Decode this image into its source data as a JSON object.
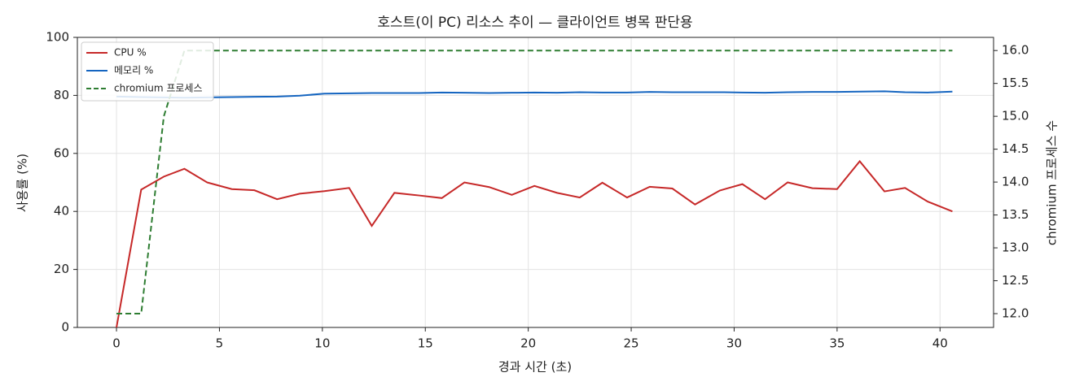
{
  "chart_data": {
    "type": "line",
    "title": "호스트(이 PC) 리소스 추이 — 클라이언트 병목 판단용",
    "x_label": "경과 시간 (초)",
    "y_label": "사용률 (%)",
    "y2_label": "chromium 프로세스 수",
    "x": [
      0,
      1.2,
      2.3,
      3.3,
      4.4,
      5.6,
      6.7,
      7.8,
      8.9,
      10.1,
      11.3,
      12.4,
      13.5,
      14.7,
      15.8,
      16.9,
      18.1,
      19.2,
      20.3,
      21.4,
      22.5,
      23.6,
      24.8,
      25.9,
      27.0,
      28.1,
      29.3,
      30.4,
      31.5,
      32.6,
      33.8,
      35.0,
      36.1,
      37.3,
      38.3,
      39.4,
      40.6
    ],
    "series": [
      {
        "name": "CPU %",
        "color": "#c62828",
        "linestyle": "solid",
        "values": [
          0,
          47.5,
          52,
          54.7,
          50,
          47.7,
          47.3,
          44.2,
          46.1,
          47,
          48.1,
          35,
          46.4,
          45.5,
          44.6,
          50,
          48.4,
          45.7,
          48.8,
          46.4,
          44.8,
          49.9,
          44.8,
          48.5,
          47.9,
          42.4,
          47.2,
          49.4,
          44.2,
          50,
          48,
          47.7,
          57.3,
          46.9,
          48.1,
          43.4,
          40
        ]
      },
      {
        "name": "메모리 %",
        "color": "#1565c0",
        "linestyle": "solid",
        "values": [
          79.6,
          79.4,
          79.3,
          79.2,
          79.3,
          79.4,
          79.5,
          79.6,
          79.9,
          80.6,
          80.7,
          80.8,
          80.8,
          80.8,
          81.0,
          80.9,
          80.8,
          80.9,
          81.0,
          80.9,
          81.1,
          81.0,
          81.0,
          81.2,
          81.1,
          81.1,
          81.1,
          81.0,
          80.9,
          81.1,
          81.2,
          81.2,
          81.3,
          81.4,
          81.1,
          81.0,
          81.3
        ]
      },
      {
        "name": "chromium 프로세스",
        "color": "#2e7d32",
        "linestyle": "dashed",
        "axis": "y2",
        "values": [
          12,
          12,
          15,
          16,
          16,
          16,
          16,
          16,
          16,
          16,
          16,
          16,
          16,
          16,
          16,
          16,
          16,
          16,
          16,
          16,
          16,
          16,
          16,
          16,
          16,
          16,
          16,
          16,
          16,
          16,
          16,
          16,
          16,
          16,
          16,
          16,
          16
        ]
      }
    ],
    "xlim": [
      -1.9,
      42.6
    ],
    "xticks": [
      0,
      5,
      10,
      15,
      20,
      25,
      30,
      35,
      40
    ],
    "ylim": [
      0,
      100
    ],
    "yticks": [
      0,
      20,
      40,
      60,
      80,
      100
    ],
    "y2lim": [
      11.79,
      16.2
    ],
    "y2ticks": [
      {
        "value": 12,
        "label": "12.0"
      },
      {
        "value": 12.5,
        "label": "12.5"
      },
      {
        "value": 13,
        "label": "13.0"
      },
      {
        "value": 13.5,
        "label": "13.5"
      },
      {
        "value": 14,
        "label": "14.0"
      },
      {
        "value": 14.5,
        "label": "14.5"
      },
      {
        "value": 15,
        "label": "15.0"
      },
      {
        "value": 15.5,
        "label": "15.5"
      },
      {
        "value": 16,
        "label": "16.0"
      }
    ],
    "grid": true,
    "legend": "upper-left"
  }
}
